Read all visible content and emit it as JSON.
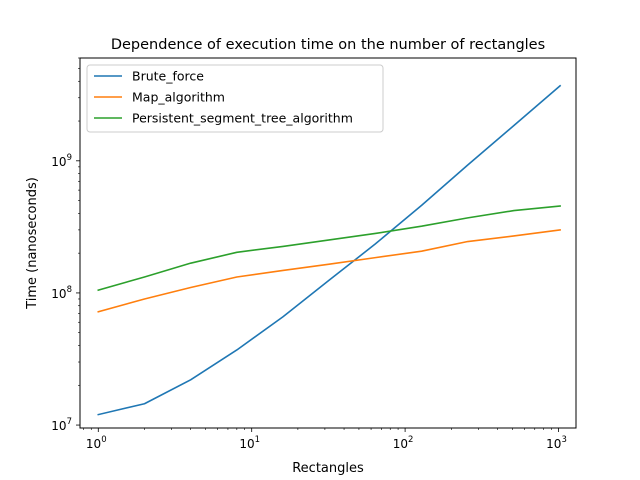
{
  "chart_data": {
    "type": "line",
    "title": "Dependence of execution time on the number of rectangles",
    "xlabel": "Rectangles",
    "ylabel": "Time (nanoseconds)",
    "xscale": "log",
    "yscale": "log",
    "xlim": [
      0.76,
      1300
    ],
    "ylim": [
      9500000.0,
      6000000000.0
    ],
    "xticks": [
      {
        "value": 1,
        "base": "10",
        "exp": "0"
      },
      {
        "value": 10,
        "base": "10",
        "exp": "1"
      },
      {
        "value": 100,
        "base": "10",
        "exp": "2"
      },
      {
        "value": 1000,
        "base": "10",
        "exp": "3"
      }
    ],
    "yticks": [
      {
        "value": 10000000.0,
        "base": "10",
        "exp": "7"
      },
      {
        "value": 100000000.0,
        "base": "10",
        "exp": "8"
      },
      {
        "value": 1000000000.0,
        "base": "10",
        "exp": "9"
      }
    ],
    "grid": false,
    "legend_position": "top-left",
    "x": [
      1,
      2,
      4,
      8,
      16,
      32,
      64,
      128,
      256,
      512,
      1024
    ],
    "series": [
      {
        "name": "Brute_force",
        "color": "#1f77b4",
        "values": [
          12000000,
          14500000,
          22000000,
          37000000,
          66000000,
          125000000,
          235000000,
          460000000,
          930000000,
          1850000000,
          3700000000
        ]
      },
      {
        "name": "Map_algorithm",
        "color": "#ff7f0e",
        "values": [
          72000000,
          90000000,
          110000000,
          132000000,
          148000000,
          165000000,
          185000000,
          207000000,
          245000000,
          270000000,
          300000000
        ]
      },
      {
        "name": "Persistent_segment_tree_algorithm",
        "color": "#2ca02c",
        "values": [
          105000000,
          132000000,
          168000000,
          203000000,
          225000000,
          252000000,
          282000000,
          320000000,
          370000000,
          420000000,
          455000000
        ]
      }
    ]
  }
}
